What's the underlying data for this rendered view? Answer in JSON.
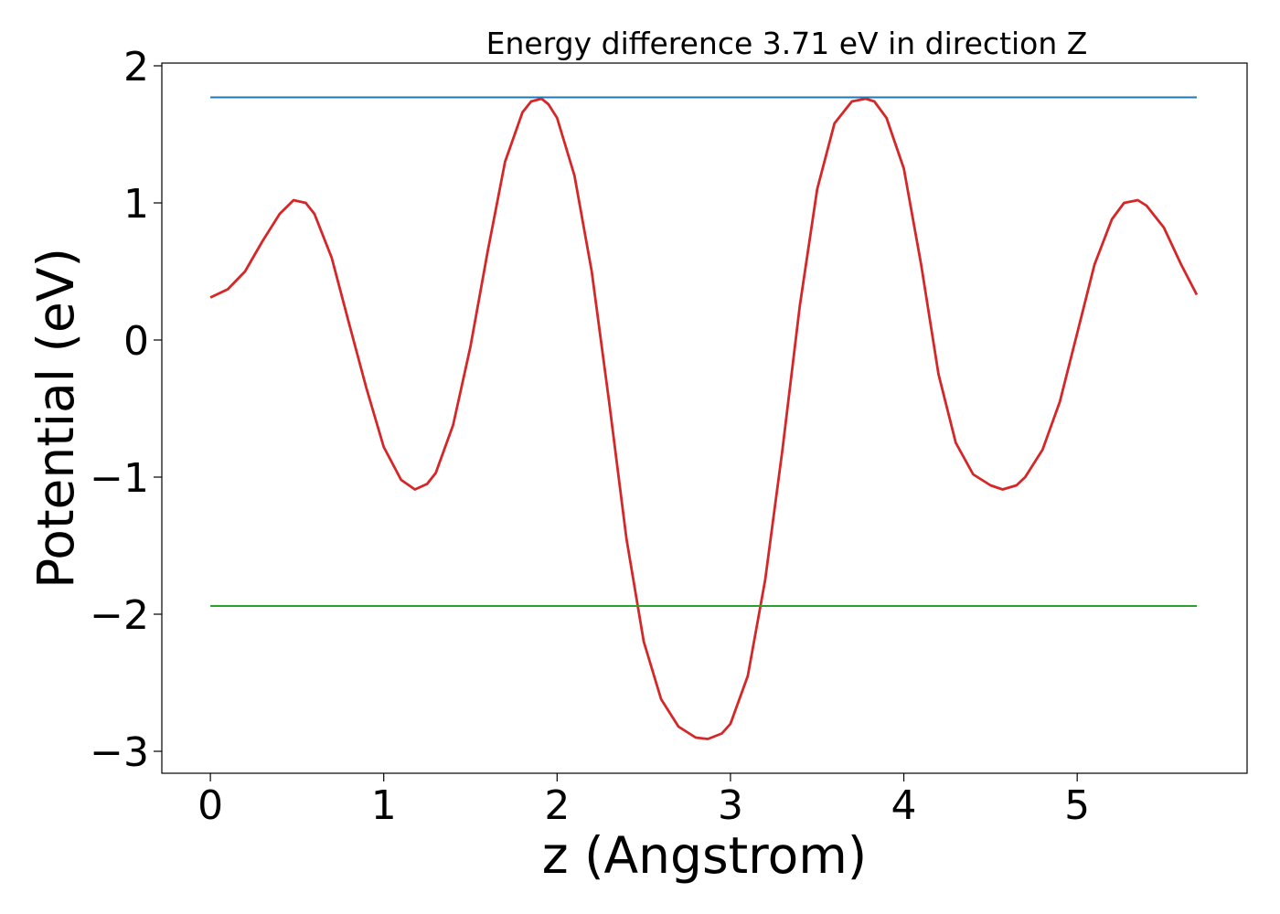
{
  "chart_data": {
    "type": "line",
    "title": "Energy difference 3.71 eV in direction Z",
    "xlabel": "z (Angstrom)",
    "ylabel": "Potential (eV)",
    "xlim": [
      -0.28,
      5.98
    ],
    "ylim": [
      -3.16,
      2.02
    ],
    "xticks": [
      0,
      1,
      2,
      3,
      4,
      5
    ],
    "yticks": [
      -3,
      -2,
      -1,
      0,
      1,
      2
    ],
    "xtick_labels": [
      "0",
      "1",
      "2",
      "3",
      "4",
      "5"
    ],
    "ytick_labels": [
      "−3",
      "−2",
      "−1",
      "0",
      "1",
      "2"
    ],
    "grid": false,
    "legend": "none",
    "series": [
      {
        "color": "#d62728",
        "x": [
          0.0,
          0.1,
          0.2,
          0.3,
          0.4,
          0.48,
          0.55,
          0.6,
          0.7,
          0.8,
          0.9,
          1.0,
          1.1,
          1.18,
          1.25,
          1.3,
          1.4,
          1.5,
          1.6,
          1.7,
          1.8,
          1.85,
          1.91,
          1.95,
          2.0,
          2.1,
          2.2,
          2.3,
          2.4,
          2.5,
          2.6,
          2.7,
          2.8,
          2.87,
          2.95,
          3.0,
          3.1,
          3.2,
          3.3,
          3.4,
          3.5,
          3.6,
          3.7,
          3.78,
          3.83,
          3.9,
          4.0,
          4.1,
          4.2,
          4.3,
          4.4,
          4.5,
          4.57,
          4.65,
          4.7,
          4.8,
          4.9,
          5.0,
          5.1,
          5.2,
          5.27,
          5.35,
          5.4,
          5.5,
          5.6,
          5.69
        ],
        "y": [
          0.31,
          0.37,
          0.5,
          0.72,
          0.92,
          1.02,
          1.0,
          0.92,
          0.6,
          0.12,
          -0.35,
          -0.78,
          -1.02,
          -1.09,
          -1.05,
          -0.97,
          -0.62,
          -0.05,
          0.65,
          1.3,
          1.66,
          1.74,
          1.76,
          1.72,
          1.62,
          1.2,
          0.5,
          -0.45,
          -1.45,
          -2.2,
          -2.62,
          -2.82,
          -2.9,
          -2.91,
          -2.87,
          -2.8,
          -2.45,
          -1.75,
          -0.8,
          0.25,
          1.1,
          1.58,
          1.74,
          1.76,
          1.74,
          1.62,
          1.25,
          0.55,
          -0.25,
          -0.75,
          -0.98,
          -1.06,
          -1.09,
          -1.06,
          -1.0,
          -0.8,
          -0.45,
          0.05,
          0.55,
          0.88,
          1.0,
          1.02,
          0.98,
          0.82,
          0.55,
          0.33
        ]
      },
      {
        "color": "#1f77b4",
        "x": [
          0.0,
          5.69
        ],
        "y": [
          1.77,
          1.77
        ]
      },
      {
        "color": "#2ca02c",
        "x": [
          0.0,
          5.69
        ],
        "y": [
          -1.94,
          -1.94
        ]
      }
    ]
  }
}
